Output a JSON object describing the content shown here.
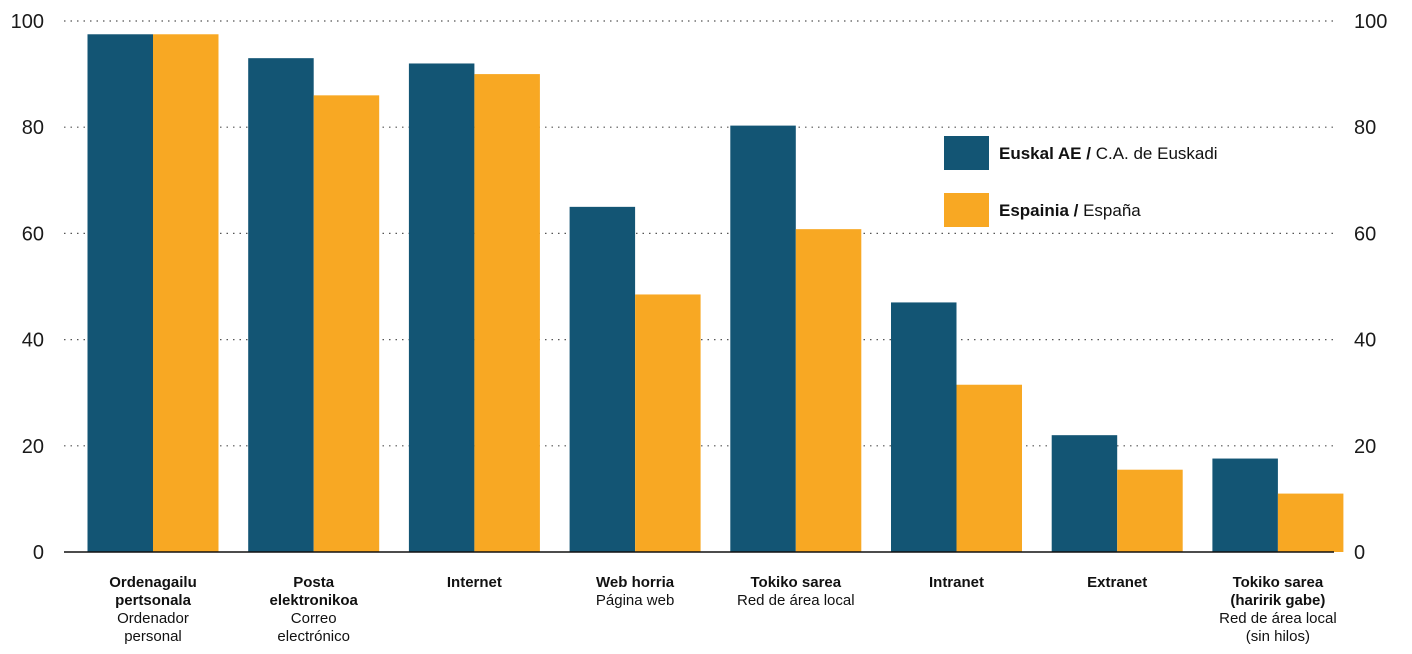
{
  "chart_data": {
    "type": "bar",
    "categories": [
      {
        "eu": "Ordenagailu pertsonala",
        "es": "Ordenador personal"
      },
      {
        "eu": "Posta elektronikoa",
        "es": "Correo electrónico"
      },
      {
        "eu": "Internet",
        "es": ""
      },
      {
        "eu": "Web horria",
        "es": "Página web"
      },
      {
        "eu": "Tokiko sarea",
        "es": "Red de área local"
      },
      {
        "eu": "Intranet",
        "es": ""
      },
      {
        "eu": "Extranet",
        "es": ""
      },
      {
        "eu": "Tokiko sarea (haririk gabe)",
        "es": "Red de área local (sin hilos)"
      }
    ],
    "category_lines": [
      {
        "bold": [
          "Ordenagailu",
          "pertsonala"
        ],
        "regular": [
          "Ordenador",
          "personal"
        ]
      },
      {
        "bold": [
          "Posta",
          "elektronikoa"
        ],
        "regular": [
          "Correo",
          "electrónico"
        ]
      },
      {
        "bold": [
          "Internet"
        ],
        "regular": []
      },
      {
        "bold": [
          "Web horria"
        ],
        "regular": [
          "Página web"
        ]
      },
      {
        "bold": [
          "Tokiko sarea"
        ],
        "regular": [
          "Red de área local"
        ]
      },
      {
        "bold": [
          "Intranet"
        ],
        "regular": []
      },
      {
        "bold": [
          "Extranet"
        ],
        "regular": []
      },
      {
        "bold": [
          "Tokiko sarea",
          "(haririk gabe)"
        ],
        "regular": [
          "Red de área local",
          "(sin hilos)"
        ]
      }
    ],
    "series": [
      {
        "name_bold": "Euskal AE",
        "name_rest": "C.A. de Euskadi",
        "color": "#135574",
        "values": [
          97.5,
          93,
          92,
          65,
          80.3,
          47,
          22,
          17.6
        ]
      },
      {
        "name_bold": "Espainia",
        "name_rest": "España",
        "color": "#F8A823",
        "values": [
          97.5,
          86,
          90,
          48.5,
          60.8,
          31.5,
          15.5,
          11
        ]
      }
    ],
    "ylim": [
      0,
      100
    ],
    "yticks": [
      0,
      20,
      40,
      60,
      80,
      100
    ],
    "grid": true,
    "grid_style": "dotted",
    "y_axis_both_sides": true,
    "legend_position": "right"
  }
}
